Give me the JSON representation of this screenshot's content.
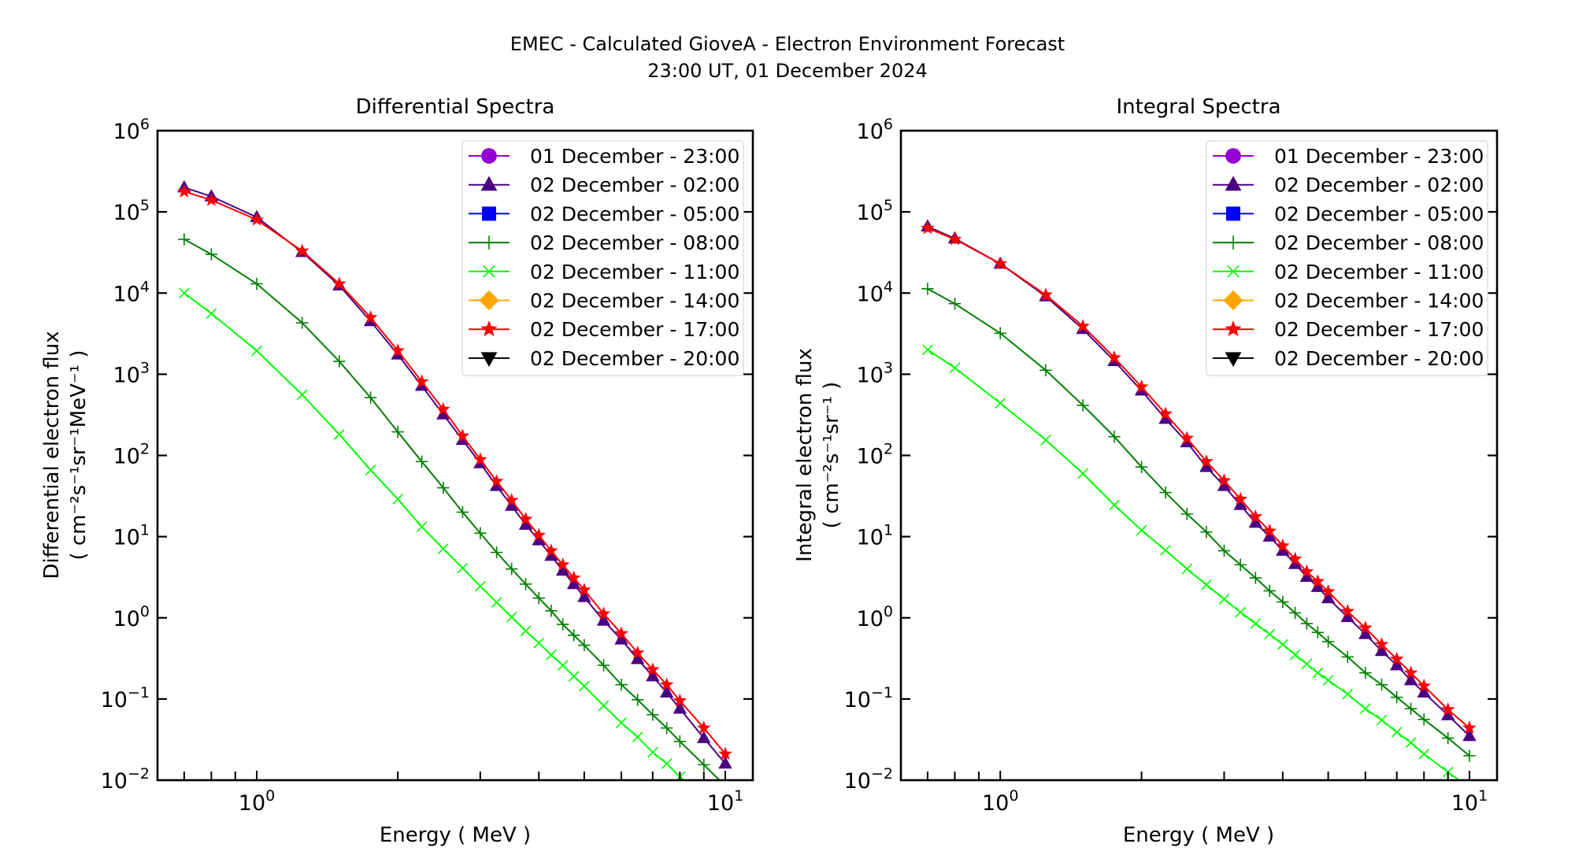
{
  "figure": {
    "title_line1": "EMEC - Calculated GioveA - Electron Environment Forecast",
    "title_line2": "23:00 UT, 01 December 2024"
  },
  "legend": [
    {
      "label": "01 December - 23:00",
      "color": "#9400d3",
      "marker": "circle"
    },
    {
      "label": "02 December - 02:00",
      "color": "#4b0082",
      "marker": "triangle-up"
    },
    {
      "label": "02 December - 05:00",
      "color": "#0000ff",
      "marker": "square"
    },
    {
      "label": "02 December - 08:00",
      "color": "#008000",
      "marker": "plus"
    },
    {
      "label": "02 December - 11:00",
      "color": "#00ff00",
      "marker": "x"
    },
    {
      "label": "02 December - 14:00",
      "color": "#ffa500",
      "marker": "diamond"
    },
    {
      "label": "02 December - 17:00",
      "color": "#ff0000",
      "marker": "star"
    },
    {
      "label": "02 December - 20:00",
      "color": "#000000",
      "marker": "triangle-down"
    }
  ],
  "chart_data": [
    {
      "type": "line",
      "title": "Differential Spectra",
      "xlabel": "Energy ( MeV )",
      "ylabel_line1": "Differential electron flux",
      "ylabel_line2": "( cm⁻²s⁻¹sr⁻¹MeV⁻¹ )",
      "xscale": "log",
      "yscale": "log",
      "xlim": [
        0.614,
        11.45
      ],
      "ylim": [
        0.01,
        1000000
      ],
      "xticks": [
        {
          "value": 1,
          "label": "10",
          "exp": "0"
        },
        {
          "value": 10,
          "label": "10",
          "exp": "1"
        }
      ],
      "yticks": [
        {
          "value": 0.01,
          "label": "10",
          "exp": "−2"
        },
        {
          "value": 0.1,
          "label": "10",
          "exp": "−1"
        },
        {
          "value": 1,
          "label": "10",
          "exp": "0"
        },
        {
          "value": 10,
          "label": "10",
          "exp": "1"
        },
        {
          "value": 100,
          "label": "10",
          "exp": "2"
        },
        {
          "value": 1000,
          "label": "10",
          "exp": "3"
        },
        {
          "value": 10000,
          "label": "10",
          "exp": "4"
        },
        {
          "value": 100000,
          "label": "10",
          "exp": "5"
        },
        {
          "value": 1000000,
          "label": "10",
          "exp": "6"
        }
      ],
      "legend_position": "top-right",
      "x": [
        0.7,
        0.8,
        1.0,
        1.25,
        1.5,
        1.75,
        2.0,
        2.25,
        2.5,
        2.75,
        3.0,
        3.25,
        3.5,
        3.75,
        4.0,
        4.25,
        4.5,
        4.75,
        5.0,
        5.5,
        6.0,
        6.5,
        7.0,
        7.5,
        8.0,
        9.0,
        10.0
      ],
      "series": [
        {
          "name": "02 December - 08:00",
          "color": "#008000",
          "marker": "plus",
          "values": [
            46000,
            30000,
            13000,
            4300,
            1440,
            515,
            195,
            84,
            40,
            20,
            11,
            6.4,
            4.0,
            2.6,
            1.75,
            1.22,
            0.83,
            0.61,
            0.46,
            0.26,
            0.15,
            0.098,
            0.064,
            0.044,
            0.03,
            0.0155,
            0.0085
          ]
        },
        {
          "name": "02 December - 11:00",
          "color": "#00ff00",
          "marker": "x",
          "values": [
            10000,
            5600,
            1950,
            560,
            182,
            66,
            29,
            13.2,
            7.1,
            4.1,
            2.45,
            1.55,
            1.02,
            0.69,
            0.49,
            0.35,
            0.26,
            0.19,
            0.144,
            0.083,
            0.051,
            0.034,
            0.022,
            0.016,
            0.011,
            0.0063,
            0.0037
          ]
        },
        {
          "name": "02 December - 02:00",
          "color": "#4b0082",
          "marker": "triangle-up",
          "values": [
            200000,
            155000,
            86000,
            32000,
            12400,
            4500,
            1750,
            720,
            320,
            155,
            80,
            42,
            24,
            14,
            9.0,
            5.8,
            3.8,
            2.6,
            1.8,
            0.92,
            0.54,
            0.31,
            0.19,
            0.12,
            0.076,
            0.033,
            0.016
          ]
        },
        {
          "name": "02 December - 17:00",
          "color": "#ff0000",
          "marker": "star",
          "values": [
            178000,
            140000,
            80000,
            33000,
            13000,
            5000,
            1950,
            810,
            370,
            174,
            89,
            48,
            28,
            16.4,
            10.4,
            6.7,
            4.5,
            3.1,
            2.2,
            1.12,
            0.64,
            0.37,
            0.23,
            0.15,
            0.095,
            0.044,
            0.021
          ]
        }
      ]
    },
    {
      "type": "line",
      "title": "Integral Spectra",
      "xlabel": "Energy ( MeV )",
      "ylabel_line1": "Integral electron flux",
      "ylabel_line2": "( cm⁻²s⁻¹sr⁻¹ )",
      "xscale": "log",
      "yscale": "log",
      "xlim": [
        0.614,
        11.45
      ],
      "ylim": [
        0.01,
        1000000
      ],
      "xticks": [
        {
          "value": 1,
          "label": "10",
          "exp": "0"
        },
        {
          "value": 10,
          "label": "10",
          "exp": "1"
        }
      ],
      "yticks": [
        {
          "value": 0.01,
          "label": "10",
          "exp": "−2"
        },
        {
          "value": 0.1,
          "label": "10",
          "exp": "−1"
        },
        {
          "value": 1,
          "label": "10",
          "exp": "0"
        },
        {
          "value": 10,
          "label": "10",
          "exp": "1"
        },
        {
          "value": 100,
          "label": "10",
          "exp": "2"
        },
        {
          "value": 1000,
          "label": "10",
          "exp": "3"
        },
        {
          "value": 10000,
          "label": "10",
          "exp": "4"
        },
        {
          "value": 100000,
          "label": "10",
          "exp": "5"
        },
        {
          "value": 1000000,
          "label": "10",
          "exp": "6"
        }
      ],
      "legend_position": "top-right",
      "x": [
        0.7,
        0.8,
        1.0,
        1.25,
        1.5,
        1.75,
        2.0,
        2.25,
        2.5,
        2.75,
        3.0,
        3.25,
        3.5,
        3.75,
        4.0,
        4.25,
        4.5,
        4.75,
        5.0,
        5.5,
        6.0,
        6.5,
        7.0,
        7.5,
        8.0,
        9.0,
        10.0
      ],
      "series": [
        {
          "name": "02 December - 08:00",
          "color": "#008000",
          "marker": "plus",
          "values": [
            11300,
            7400,
            3200,
            1120,
            415,
            170,
            72,
            35,
            19,
            11.4,
            6.7,
            4.5,
            3.1,
            2.15,
            1.57,
            1.15,
            0.85,
            0.66,
            0.51,
            0.33,
            0.21,
            0.15,
            0.105,
            0.076,
            0.056,
            0.033,
            0.02
          ]
        },
        {
          "name": "02 December - 11:00",
          "color": "#00ff00",
          "marker": "x",
          "values": [
            2000,
            1200,
            440,
            155,
            60,
            24.5,
            12,
            6.8,
            4.0,
            2.55,
            1.7,
            1.17,
            0.85,
            0.63,
            0.47,
            0.35,
            0.27,
            0.21,
            0.17,
            0.115,
            0.076,
            0.055,
            0.039,
            0.029,
            0.021,
            0.0126,
            0.008
          ]
        },
        {
          "name": "02 December - 02:00",
          "color": "#4b0082",
          "marker": "triangle-up",
          "values": [
            66000,
            47000,
            23000,
            9100,
            3600,
            1450,
            630,
            282,
            145,
            72,
            42,
            24.5,
            14.8,
            10,
            6.7,
            4.6,
            3.2,
            2.4,
            1.74,
            1.02,
            0.63,
            0.39,
            0.26,
            0.17,
            0.12,
            0.063,
            0.035
          ]
        },
        {
          "name": "02 December - 17:00",
          "color": "#ff0000",
          "marker": "star",
          "values": [
            63000,
            46000,
            23000,
            9500,
            3900,
            1600,
            700,
            325,
            163,
            84,
            49,
            29,
            17.6,
            11.7,
            7.7,
            5.3,
            3.7,
            2.8,
            2.1,
            1.2,
            0.75,
            0.47,
            0.31,
            0.21,
            0.145,
            0.074,
            0.044
          ]
        }
      ]
    }
  ]
}
